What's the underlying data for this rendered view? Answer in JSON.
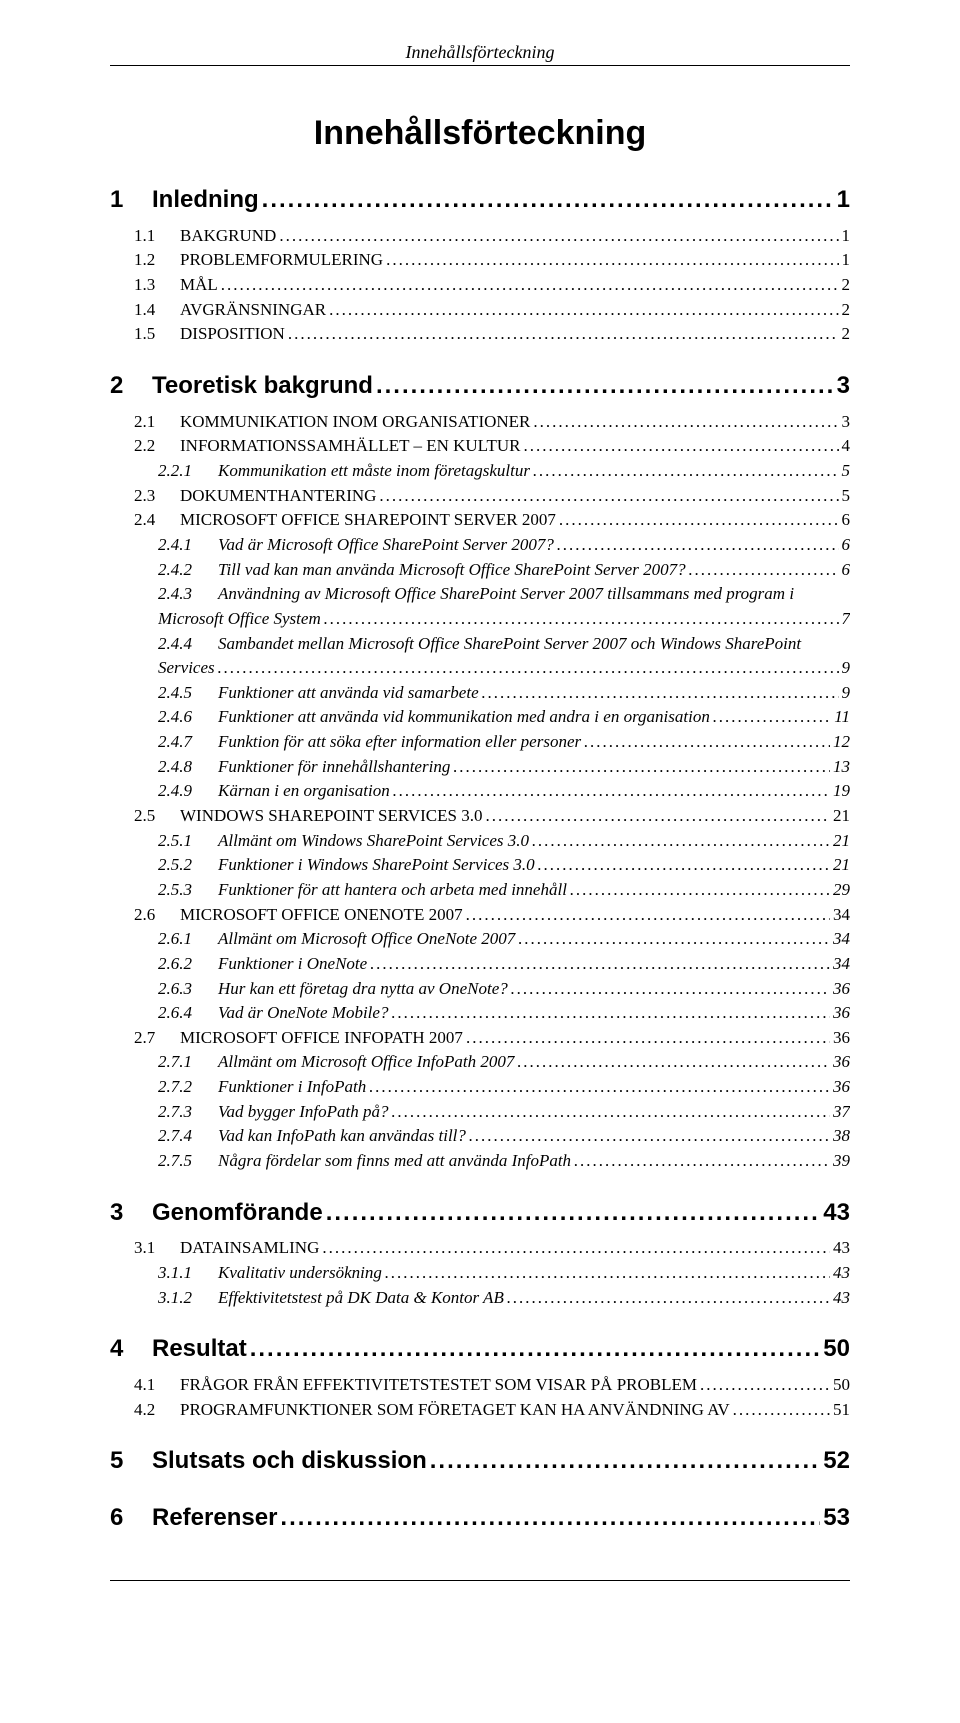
{
  "running_head": "Innehållsförteckning",
  "title": "Innehållsförteckning",
  "toc": [
    {
      "level": 1,
      "num": "1",
      "label": "Inledning",
      "page": "1"
    },
    {
      "level": 2,
      "num": "1.1",
      "label": "BAKGRUND",
      "page": "1"
    },
    {
      "level": 2,
      "num": "1.2",
      "label": "PROBLEMFORMULERING",
      "page": "1"
    },
    {
      "level": 2,
      "num": "1.3",
      "label": "MÅL",
      "page": "2"
    },
    {
      "level": 2,
      "num": "1.4",
      "label": "AVGRÄNSNINGAR",
      "page": "2"
    },
    {
      "level": 2,
      "num": "1.5",
      "label": "DISPOSITION",
      "page": "2"
    },
    {
      "level": 1,
      "num": "2",
      "label": "Teoretisk bakgrund",
      "page": "3"
    },
    {
      "level": 2,
      "num": "2.1",
      "label": "KOMMUNIKATION INOM ORGANISATIONER",
      "page": "3"
    },
    {
      "level": 2,
      "num": "2.2",
      "label": "INFORMATIONSSAMHÄLLET – EN KULTUR",
      "page": "4"
    },
    {
      "level": 3,
      "num": "2.2.1",
      "label": "Kommunikation ett måste inom företagskultur",
      "page": "5"
    },
    {
      "level": 2,
      "num": "2.3",
      "label": "DOKUMENTHANTERING",
      "page": "5"
    },
    {
      "level": 2,
      "num": "2.4",
      "label": "MICROSOFT OFFICE SHAREPOINT SERVER 2007",
      "page": "6"
    },
    {
      "level": 3,
      "num": "2.4.1",
      "label": "Vad är Microsoft Office SharePoint Server 2007?",
      "page": "6"
    },
    {
      "level": 3,
      "num": "2.4.2",
      "label": "Till vad kan man använda Microsoft Office SharePoint Server 2007?",
      "page": "6"
    },
    {
      "level": 3,
      "num": "2.4.3",
      "label_a": "Användning av Microsoft Office SharePoint Server 2007 tillsammans med program i",
      "label_b": "Microsoft Office System",
      "page": "7",
      "wrap": true
    },
    {
      "level": 3,
      "num": "2.4.4",
      "label_a": "Sambandet mellan Microsoft Office SharePoint Server 2007 och Windows SharePoint",
      "label_b": "Services",
      "page": "9",
      "wrap": true
    },
    {
      "level": 3,
      "num": "2.4.5",
      "label": "Funktioner att använda vid samarbete",
      "page": "9"
    },
    {
      "level": 3,
      "num": "2.4.6",
      "label": "Funktioner att använda vid kommunikation med andra i en organisation",
      "page": "11"
    },
    {
      "level": 3,
      "num": "2.4.7",
      "label": "Funktion för att söka efter information eller personer",
      "page": "12"
    },
    {
      "level": 3,
      "num": "2.4.8",
      "label": "Funktioner för innehållshantering",
      "page": "13"
    },
    {
      "level": 3,
      "num": "2.4.9",
      "label": "Kärnan i en organisation",
      "page": "19"
    },
    {
      "level": 2,
      "num": "2.5",
      "label": "WINDOWS SHAREPOINT SERVICES 3.0",
      "page": "21"
    },
    {
      "level": 3,
      "num": "2.5.1",
      "label": "Allmänt om Windows SharePoint Services 3.0",
      "page": "21"
    },
    {
      "level": 3,
      "num": "2.5.2",
      "label": "Funktioner i Windows SharePoint Services 3.0",
      "page": "21"
    },
    {
      "level": 3,
      "num": "2.5.3",
      "label": "Funktioner för att hantera och arbeta med innehåll",
      "page": "29"
    },
    {
      "level": 2,
      "num": "2.6",
      "label": "MICROSOFT OFFICE ONENOTE 2007",
      "page": "34"
    },
    {
      "level": 3,
      "num": "2.6.1",
      "label": "Allmänt om Microsoft Office OneNote 2007",
      "page": "34"
    },
    {
      "level": 3,
      "num": "2.6.2",
      "label": "Funktioner i OneNote",
      "page": "34"
    },
    {
      "level": 3,
      "num": "2.6.3",
      "label": "Hur kan ett företag dra nytta av OneNote?",
      "page": "36"
    },
    {
      "level": 3,
      "num": "2.6.4",
      "label": "Vad är OneNote Mobile?",
      "page": "36"
    },
    {
      "level": 2,
      "num": "2.7",
      "label": "MICROSOFT OFFICE INFOPATH 2007",
      "page": "36"
    },
    {
      "level": 3,
      "num": "2.7.1",
      "label": "Allmänt om Microsoft Office InfoPath 2007",
      "page": "36"
    },
    {
      "level": 3,
      "num": "2.7.2",
      "label": "Funktioner i InfoPath",
      "page": "36"
    },
    {
      "level": 3,
      "num": "2.7.3",
      "label": "Vad bygger InfoPath på?",
      "page": "37"
    },
    {
      "level": 3,
      "num": "2.7.4",
      "label": "Vad kan InfoPath kan användas till?",
      "page": "38"
    },
    {
      "level": 3,
      "num": "2.7.5",
      "label": "Några fördelar som finns med att använda InfoPath",
      "page": "39"
    },
    {
      "level": 1,
      "num": "3",
      "label": "Genomförande",
      "page": "43"
    },
    {
      "level": 2,
      "num": "3.1",
      "label": "DATAINSAMLING",
      "page": "43"
    },
    {
      "level": 3,
      "num": "3.1.1",
      "label": "Kvalitativ undersökning",
      "page": "43"
    },
    {
      "level": 3,
      "num": "3.1.2",
      "label": "Effektivitetstest på DK Data & Kontor AB",
      "page": "43"
    },
    {
      "level": 1,
      "num": "4",
      "label": "Resultat",
      "page": "50"
    },
    {
      "level": 2,
      "num": "4.1",
      "label": "FRÅGOR FRÅN EFFEKTIVITETSTESTET SOM VISAR PÅ PROBLEM",
      "page": "50"
    },
    {
      "level": 2,
      "num": "4.2",
      "label": "PROGRAMFUNKTIONER SOM FÖRETAGET KAN HA ANVÄNDNING AV",
      "page": "51"
    },
    {
      "level": 1,
      "num": "5",
      "label": "Slutsats och diskussion",
      "page": "52"
    },
    {
      "level": 1,
      "num": "6",
      "label": "Referenser",
      "page": "53"
    }
  ]
}
